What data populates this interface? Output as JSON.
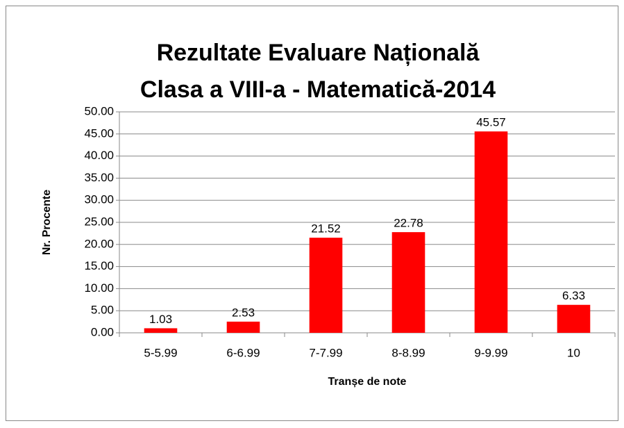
{
  "chart_data": {
    "type": "bar",
    "title": [
      "Rezultate Evaluare Națională",
      "Clasa a VIII-a - Matematică-2014"
    ],
    "x_label": "Tranșe de note",
    "y_label": "Nr. Procente",
    "categories": [
      "5-5.99",
      "6-6.99",
      "7-7.99",
      "8-8.99",
      "9-9.99",
      "10"
    ],
    "values": [
      1.03,
      2.53,
      21.52,
      22.78,
      45.57,
      6.33
    ],
    "color": "#ff0000",
    "ylim": [
      0,
      50
    ],
    "yticks": [
      {
        "value": 0,
        "label": "0.00"
      },
      {
        "value": 5,
        "label": "5.00"
      },
      {
        "value": 10,
        "label": "10.00"
      },
      {
        "value": 15,
        "label": "15.00"
      },
      {
        "value": 20,
        "label": "20.00"
      },
      {
        "value": 25,
        "label": "25.00"
      },
      {
        "value": 30,
        "label": "30.00"
      },
      {
        "value": 35,
        "label": "35.00"
      },
      {
        "value": 40,
        "label": "40.00"
      },
      {
        "value": 45,
        "label": "45.00"
      },
      {
        "value": 50,
        "label": "50.00"
      }
    ],
    "grid": true,
    "data_labels": true
  }
}
